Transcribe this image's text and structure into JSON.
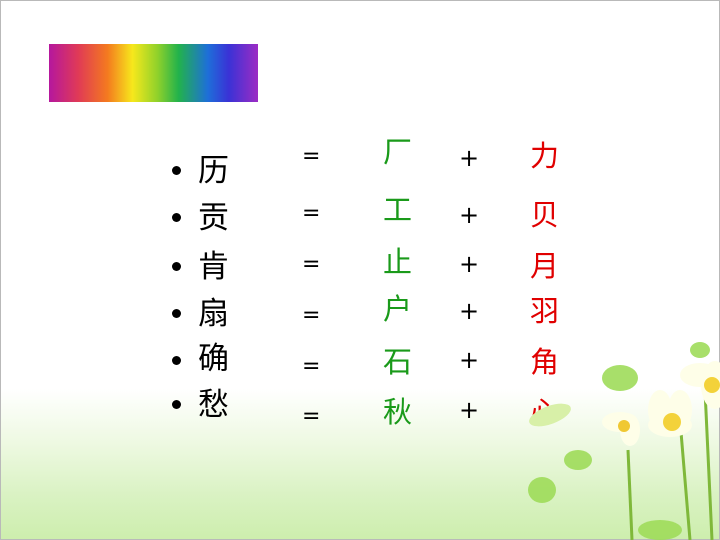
{
  "rows": [
    {
      "char": "历",
      "eq": "=",
      "part1": "厂",
      "plus": "+",
      "part2": "力"
    },
    {
      "char": "贡",
      "eq": "=",
      "part1": "工",
      "plus": "+",
      "part2": "贝"
    },
    {
      "char": "肯",
      "eq": "=",
      "part1": "止",
      "plus": "+",
      "part2": "月"
    },
    {
      "char": "扇",
      "eq": "=",
      "part1": "户",
      "plus": "+",
      "part2": "羽"
    },
    {
      "char": "确",
      "eq": "=",
      "part1": "石",
      "plus": "+",
      "part2": "角"
    },
    {
      "char": "愁",
      "eq": "=",
      "part1": "秋",
      "plus": "+",
      "part2": "心"
    }
  ],
  "colors": {
    "component_left": "#1a9a1a",
    "component_right": "#e00000"
  }
}
